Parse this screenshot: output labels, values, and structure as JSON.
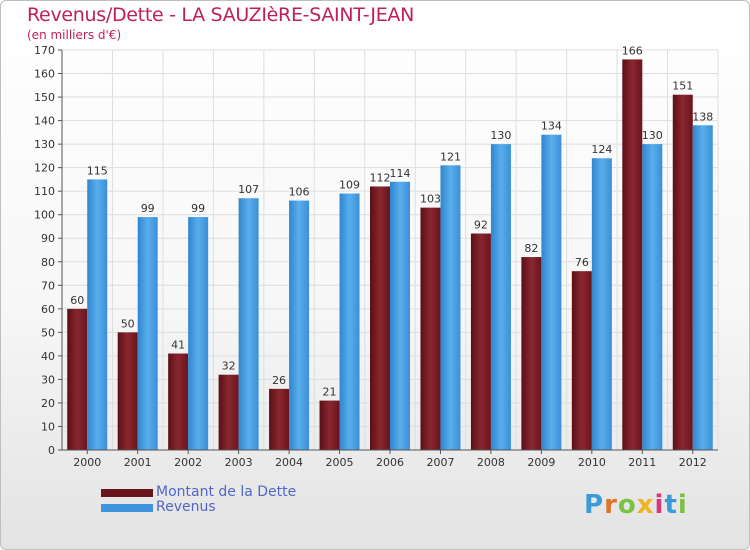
{
  "header": {
    "title": "Revenus/Dette - LA SAUZIèRE-SAINT-JEAN",
    "subtitle": "(en milliers d'€)"
  },
  "chart_data": {
    "type": "bar",
    "categories": [
      "2000",
      "2001",
      "2002",
      "2003",
      "2004",
      "2005",
      "2006",
      "2007",
      "2008",
      "2009",
      "2010",
      "2011",
      "2012"
    ],
    "series": [
      {
        "name": "Montant de la Dette",
        "color": "#7a1a22",
        "values": [
          60,
          50,
          41,
          32,
          26,
          21,
          112,
          103,
          92,
          82,
          76,
          166,
          151
        ]
      },
      {
        "name": "Revenus",
        "color": "#3d94dd",
        "values": [
          115,
          99,
          99,
          107,
          106,
          109,
          114,
          121,
          130,
          134,
          124,
          130,
          138
        ]
      }
    ],
    "ylim": [
      0,
      170
    ],
    "yticks": [
      0,
      10,
      20,
      30,
      40,
      50,
      60,
      70,
      80,
      90,
      100,
      110,
      120,
      130,
      140,
      150,
      160,
      170
    ],
    "grid": true,
    "legend_position": "bottom-left"
  },
  "legend": {
    "items": [
      {
        "label": "Montant de la Dette",
        "color": "#7a1a22"
      },
      {
        "label": "Revenus",
        "color": "#3d94dd"
      }
    ]
  },
  "logo": {
    "letters": [
      "P",
      "r",
      "o",
      "x",
      "i",
      "t",
      "i"
    ],
    "colors": [
      "#3a9bd9",
      "#e0732a",
      "#7cc242",
      "#f0b323",
      "#d9367a",
      "#3a9bd9",
      "#7cc242"
    ]
  }
}
